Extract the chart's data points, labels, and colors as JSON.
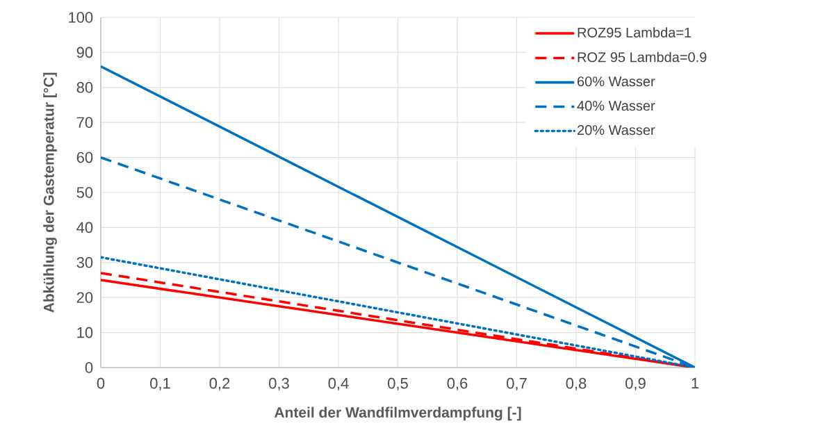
{
  "chart_data": {
    "type": "line",
    "xlabel": "Anteil der Wandfilmverdampfung [-]",
    "ylabel": "Abkühlung der Gastemperatur [°C]",
    "x": [
      0,
      1
    ],
    "series": [
      {
        "name": "ROZ95 Lambda=1",
        "color": "#ff0000",
        "line_style": "solid",
        "values": [
          25,
          0
        ]
      },
      {
        "name": "ROZ 95 Lambda=0.9",
        "color": "#ff0000",
        "line_style": "dashed",
        "values": [
          27,
          0
        ]
      },
      {
        "name": "60% Wasser",
        "color": "#0070c0",
        "line_style": "solid",
        "values": [
          86,
          0
        ]
      },
      {
        "name": "40% Wasser",
        "color": "#0070c0",
        "line_style": "dashed",
        "values": [
          60,
          0
        ]
      },
      {
        "name": "20% Wasser",
        "color": "#0070c0",
        "line_style": "dotted",
        "values": [
          31.5,
          0
        ]
      }
    ],
    "xlim": [
      0,
      1
    ],
    "ylim": [
      0,
      100
    ],
    "xticks": [
      0,
      {
        "value": 0.1,
        "label": "0,1"
      },
      {
        "value": 0.2,
        "label": "0,2"
      },
      {
        "value": 0.3,
        "label": "0,3"
      },
      {
        "value": 0.4,
        "label": "0,4"
      },
      {
        "value": 0.5,
        "label": "0,5"
      },
      {
        "value": 0.6,
        "label": "0,6"
      },
      {
        "value": 0.7,
        "label": "0,7"
      },
      {
        "value": 0.8,
        "label": "0,8"
      },
      {
        "value": 0.9,
        "label": "0,9"
      },
      1
    ],
    "yticks": [
      0,
      10,
      20,
      30,
      40,
      50,
      60,
      70,
      80,
      90,
      100
    ],
    "grid": true,
    "legend": "top right"
  }
}
